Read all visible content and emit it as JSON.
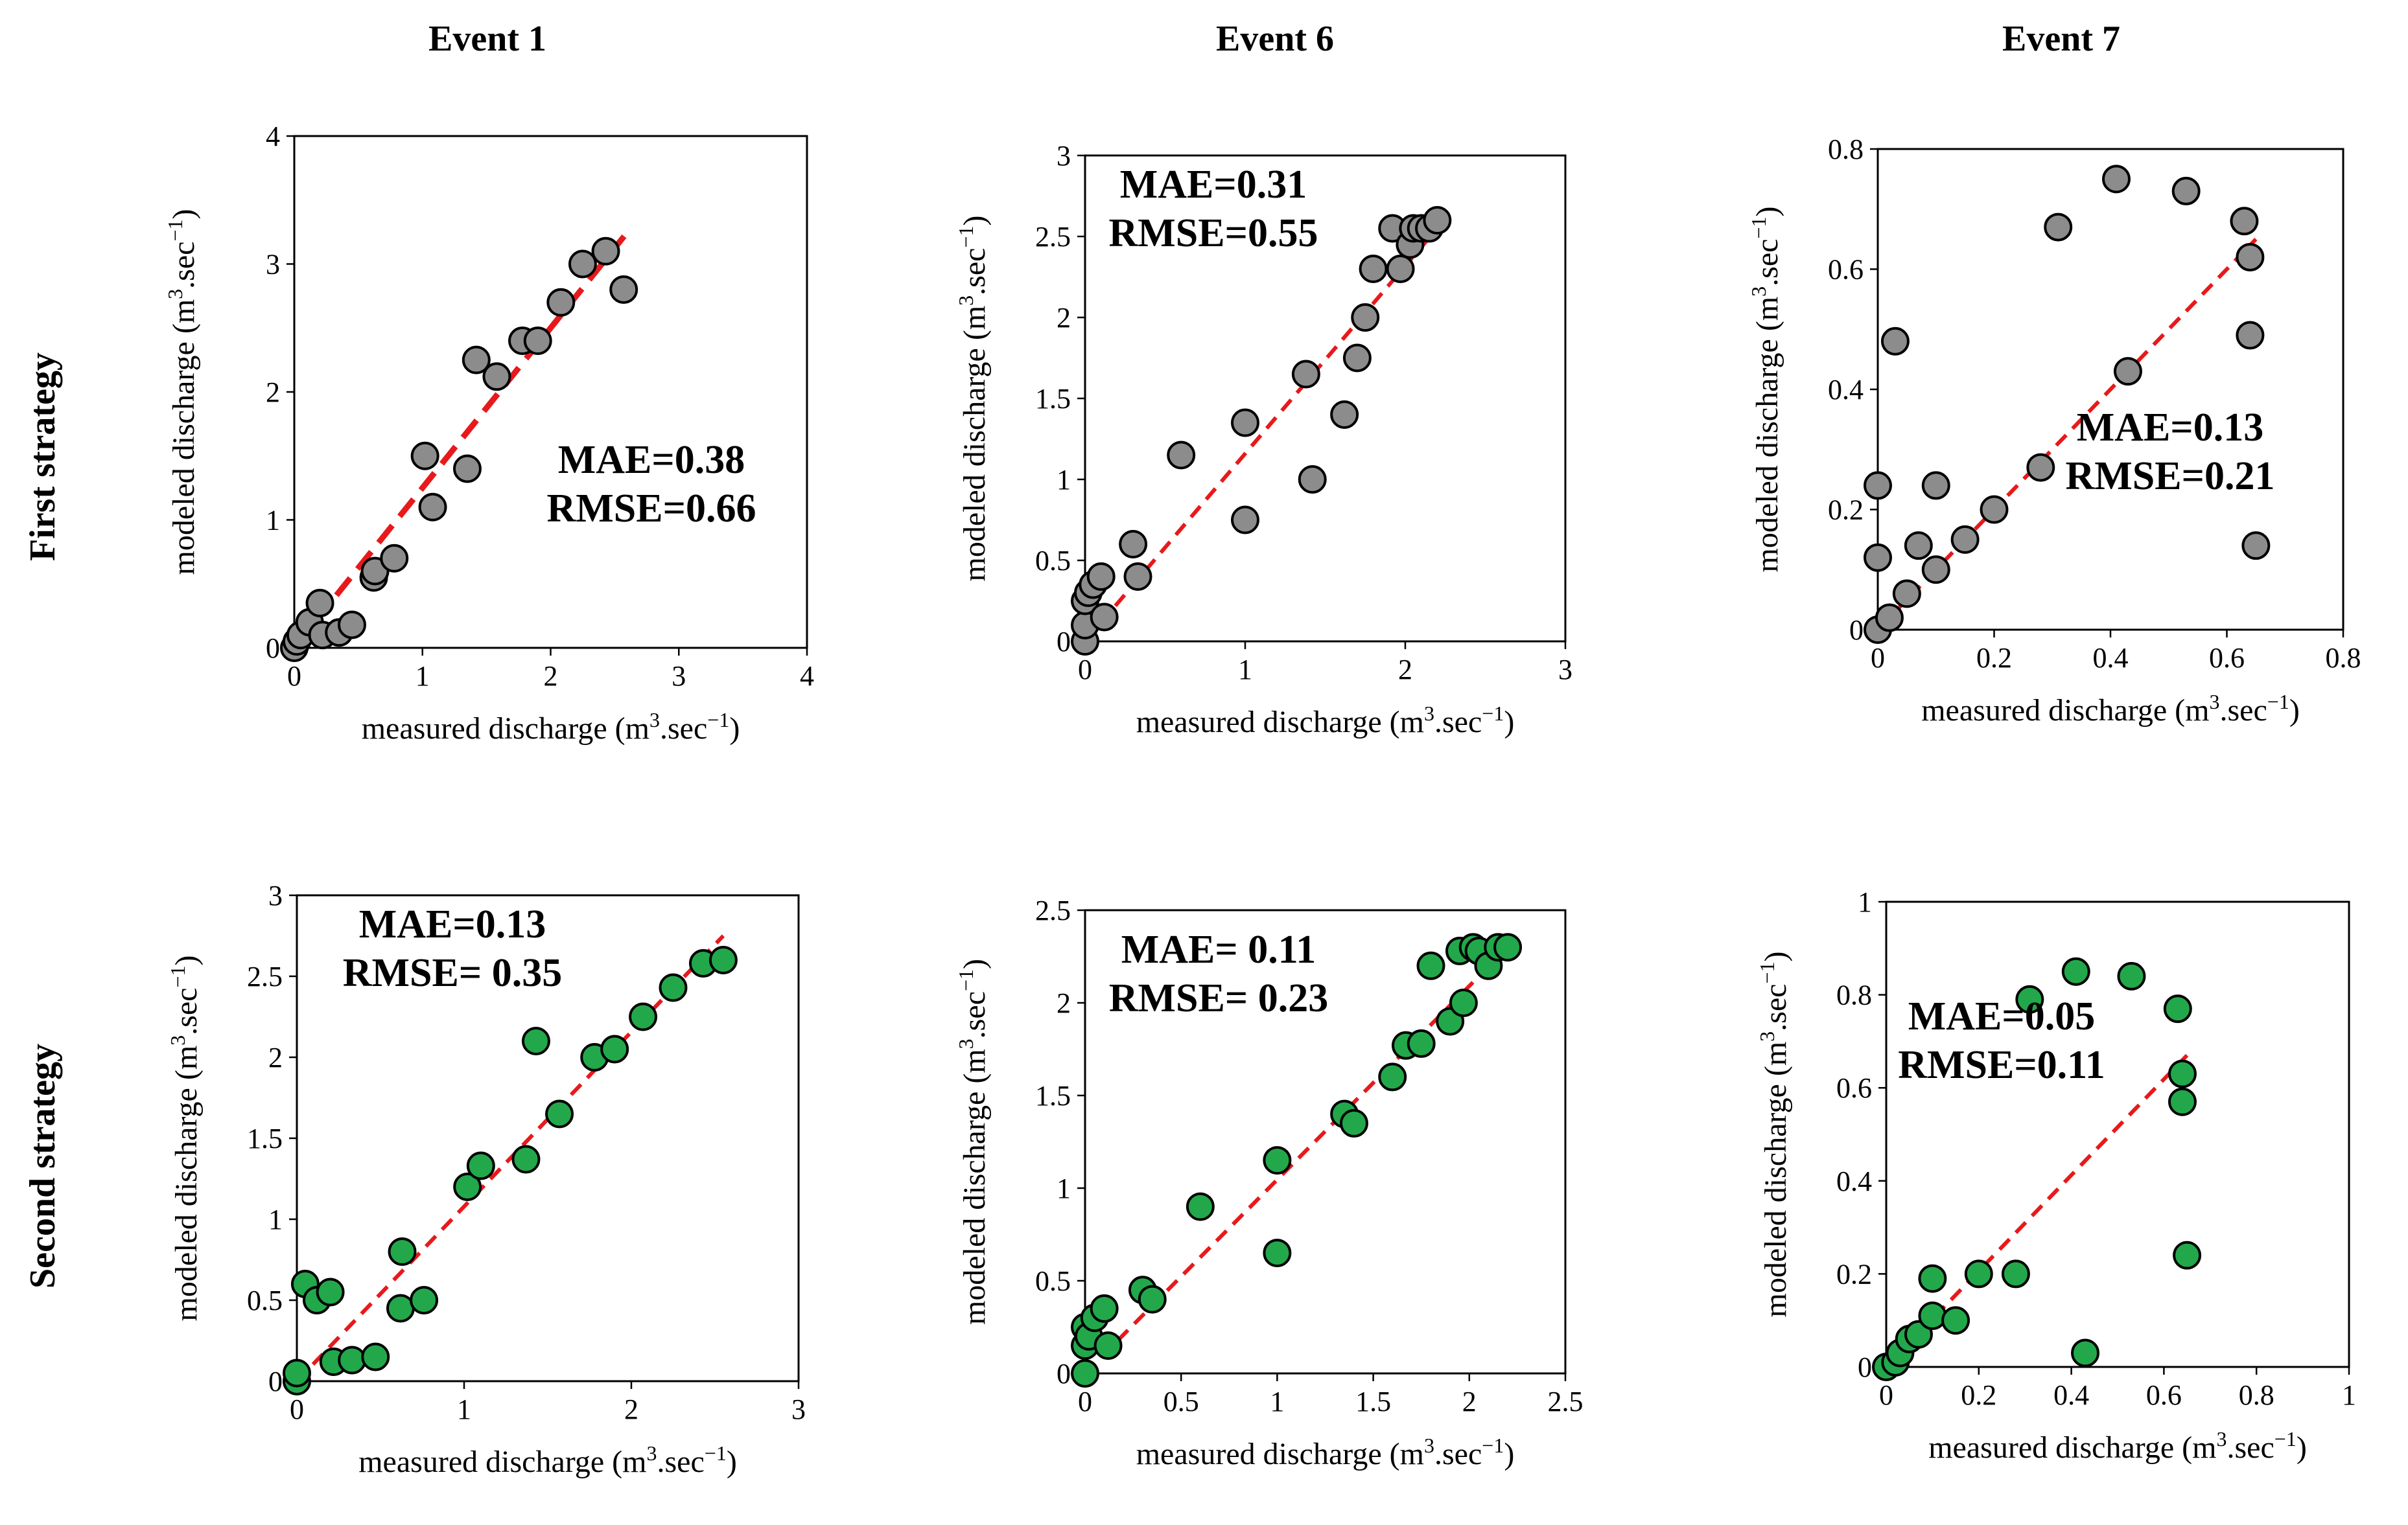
{
  "column_titles": [
    "Event 1",
    "Event 6",
    "Event 7"
  ],
  "row_titles": [
    "First strategy",
    "Second strategy"
  ],
  "colors": {
    "first": "#8c8c8c",
    "second": "#22a84a",
    "trend": "#e8191b",
    "marker_edge": "#000000"
  },
  "chart_data": [
    {
      "type": "scatter",
      "id": "e1-first",
      "title": "Event 1",
      "strategy": "First strategy",
      "xlabel": "measured discharge (m3.sec-1)",
      "ylabel": "modeled discharge (m3.sec-1)",
      "xlim": [
        0,
        4
      ],
      "ylim": [
        0,
        4
      ],
      "xticks": [
        0,
        1,
        2,
        3,
        4
      ],
      "yticks": [
        0,
        1,
        2,
        3,
        4
      ],
      "x": [
        0,
        0.02,
        0.05,
        0.12,
        0.2,
        0.22,
        0.35,
        0.45,
        0.62,
        0.63,
        0.78,
        1.02,
        1.08,
        1.35,
        1.42,
        1.58,
        1.78,
        1.9,
        2.08,
        2.25,
        2.43,
        2.57
      ],
      "y": [
        0,
        0.05,
        0.1,
        0.2,
        0.35,
        0.1,
        0.12,
        0.18,
        0.55,
        0.6,
        0.7,
        1.5,
        1.1,
        1.4,
        2.25,
        2.12,
        2.4,
        2.4,
        2.7,
        3.0,
        3.1,
        2.8
      ],
      "trend": [
        [
          0,
          0
        ],
        [
          2.6,
          3.25
        ]
      ],
      "annotations": [
        "MAE=0.38",
        "RMSE=0.66"
      ],
      "annotation_position": "center-right"
    },
    {
      "type": "scatter",
      "id": "e6-first",
      "title": "Event 6",
      "strategy": "First strategy",
      "xlabel": "measured discharge (m3.sec-1)",
      "ylabel": "modeled discharge (m3.sec-1)",
      "xlim": [
        0,
        3
      ],
      "ylim": [
        0,
        3
      ],
      "xticks": [
        0,
        1,
        2,
        3
      ],
      "yticks": [
        0,
        0.5,
        1,
        1.5,
        2,
        2.5,
        3
      ],
      "x": [
        0,
        0,
        0,
        0.02,
        0.05,
        0.1,
        0.12,
        0.3,
        0.33,
        0.6,
        1.0,
        1.0,
        1.38,
        1.42,
        1.62,
        1.7,
        1.75,
        1.8,
        1.92,
        1.97,
        2.03,
        2.05,
        2.1,
        2.15,
        2.2
      ],
      "y": [
        0,
        0.1,
        0.25,
        0.3,
        0.35,
        0.4,
        0.15,
        0.6,
        0.4,
        1.15,
        0.75,
        1.35,
        1.65,
        1.0,
        1.4,
        1.75,
        2.0,
        2.3,
        2.55,
        2.3,
        2.45,
        2.55,
        2.55,
        2.55,
        2.6
      ],
      "trend": [
        [
          0,
          0
        ],
        [
          2.2,
          2.55
        ]
      ],
      "annotations": [
        "MAE=0.31",
        "RMSE=0.55"
      ],
      "annotation_position": "top-left"
    },
    {
      "type": "scatter",
      "id": "e7-first",
      "title": "Event 7",
      "strategy": "First strategy",
      "xlabel": "measured discharge (m3.sec-1)",
      "ylabel": "modeled discharge (m3.sec-1)",
      "xlim": [
        0,
        0.8
      ],
      "ylim": [
        0,
        0.8
      ],
      "xticks": [
        0,
        0.2,
        0.4,
        0.6,
        0.8
      ],
      "yticks": [
        0,
        0.2,
        0.4,
        0.6,
        0.8
      ],
      "x": [
        0,
        0,
        0,
        0.02,
        0.03,
        0.05,
        0.07,
        0.1,
        0.1,
        0.15,
        0.2,
        0.28,
        0.31,
        0.41,
        0.43,
        0.53,
        0.63,
        0.64,
        0.64,
        0.65
      ],
      "y": [
        0,
        0.12,
        0.24,
        0.02,
        0.48,
        0.06,
        0.14,
        0.1,
        0.24,
        0.15,
        0.2,
        0.27,
        0.67,
        0.75,
        0.43,
        0.73,
        0.68,
        0.62,
        0.49,
        0.14
      ],
      "trend": [
        [
          0,
          0
        ],
        [
          0.65,
          0.65
        ]
      ],
      "annotations": [
        "MAE=0.13",
        "RMSE=0.21"
      ],
      "annotation_position": "center-right"
    },
    {
      "type": "scatter",
      "id": "e1-second",
      "title": "Event 1",
      "strategy": "Second strategy",
      "xlabel": "measured discharge (m3.sec-1)",
      "ylabel": "modeled discharge (m3.sec-1)",
      "xlim": [
        0,
        3
      ],
      "ylim": [
        0,
        3
      ],
      "xticks": [
        0,
        1,
        2,
        3
      ],
      "yticks": [
        0,
        0.5,
        1,
        1.5,
        2,
        2.5,
        3
      ],
      "x": [
        0,
        0,
        0.05,
        0.12,
        0.2,
        0.22,
        0.33,
        0.47,
        0.62,
        0.63,
        0.76,
        1.02,
        1.1,
        1.37,
        1.43,
        1.57,
        1.78,
        1.9,
        2.07,
        2.25,
        2.43,
        2.55
      ],
      "y": [
        0,
        0.05,
        0.6,
        0.5,
        0.55,
        0.12,
        0.13,
        0.15,
        0.45,
        0.8,
        0.5,
        1.2,
        1.33,
        1.37,
        2.1,
        1.65,
        2.0,
        2.05,
        2.25,
        2.43,
        2.58,
        2.6
      ],
      "trend": [
        [
          0,
          0
        ],
        [
          2.55,
          2.75
        ]
      ],
      "annotations": [
        "MAE=0.13",
        "RMSE= 0.35"
      ],
      "annotation_position": "top-left"
    },
    {
      "type": "scatter",
      "id": "e6-second",
      "title": "Event 6",
      "strategy": "Second strategy",
      "xlabel": "measured discharge (m3.sec-1)",
      "ylabel": "modeled discharge (m3.sec-1)",
      "xlim": [
        0,
        2.5
      ],
      "ylim": [
        0,
        2.5
      ],
      "xticks": [
        0,
        0.5,
        1,
        1.5,
        2,
        2.5
      ],
      "yticks": [
        0,
        0.5,
        1,
        1.5,
        2,
        2.5
      ],
      "x": [
        0,
        0,
        0,
        0.02,
        0.05,
        0.1,
        0.12,
        0.3,
        0.35,
        0.6,
        1.0,
        1.0,
        1.35,
        1.4,
        1.6,
        1.67,
        1.75,
        1.8,
        1.9,
        1.95,
        1.97,
        2.02,
        2.05,
        2.1,
        2.15,
        2.2
      ],
      "y": [
        0,
        0.15,
        0.25,
        0.2,
        0.3,
        0.35,
        0.15,
        0.45,
        0.4,
        0.9,
        0.65,
        1.15,
        1.4,
        1.35,
        1.6,
        1.77,
        1.78,
        2.2,
        1.9,
        2.28,
        2.0,
        2.3,
        2.28,
        2.2,
        2.3,
        2.3
      ],
      "trend": [
        [
          0,
          0
        ],
        [
          2.2,
          2.3
        ]
      ],
      "annotations": [
        "MAE= 0.11",
        "RMSE= 0.23"
      ],
      "annotation_position": "top-left"
    },
    {
      "type": "scatter",
      "id": "e7-second",
      "title": "Event 7",
      "strategy": "Second strategy",
      "xlabel": "measured discharge (m3.sec-1)",
      "ylabel": "modeled discharge (m3.sec-1)",
      "xlim": [
        0,
        1
      ],
      "ylim": [
        0,
        1
      ],
      "xticks": [
        0,
        0.2,
        0.4,
        0.6,
        0.8,
        1
      ],
      "yticks": [
        0,
        0.2,
        0.4,
        0.6,
        0.8,
        1
      ],
      "x": [
        0,
        0.02,
        0.03,
        0.05,
        0.07,
        0.1,
        0.1,
        0.15,
        0.2,
        0.28,
        0.31,
        0.41,
        0.43,
        0.53,
        0.63,
        0.64,
        0.64,
        0.65
      ],
      "y": [
        0,
        0.01,
        0.03,
        0.06,
        0.07,
        0.11,
        0.19,
        0.1,
        0.2,
        0.2,
        0.79,
        0.85,
        0.03,
        0.84,
        0.77,
        0.63,
        0.57,
        0.24
      ],
      "trend": [
        [
          0,
          0
        ],
        [
          0.65,
          0.67
        ]
      ],
      "annotations": [
        "MAE=0.05",
        "RMSE=0.11"
      ],
      "annotation_position": "top-left"
    }
  ]
}
